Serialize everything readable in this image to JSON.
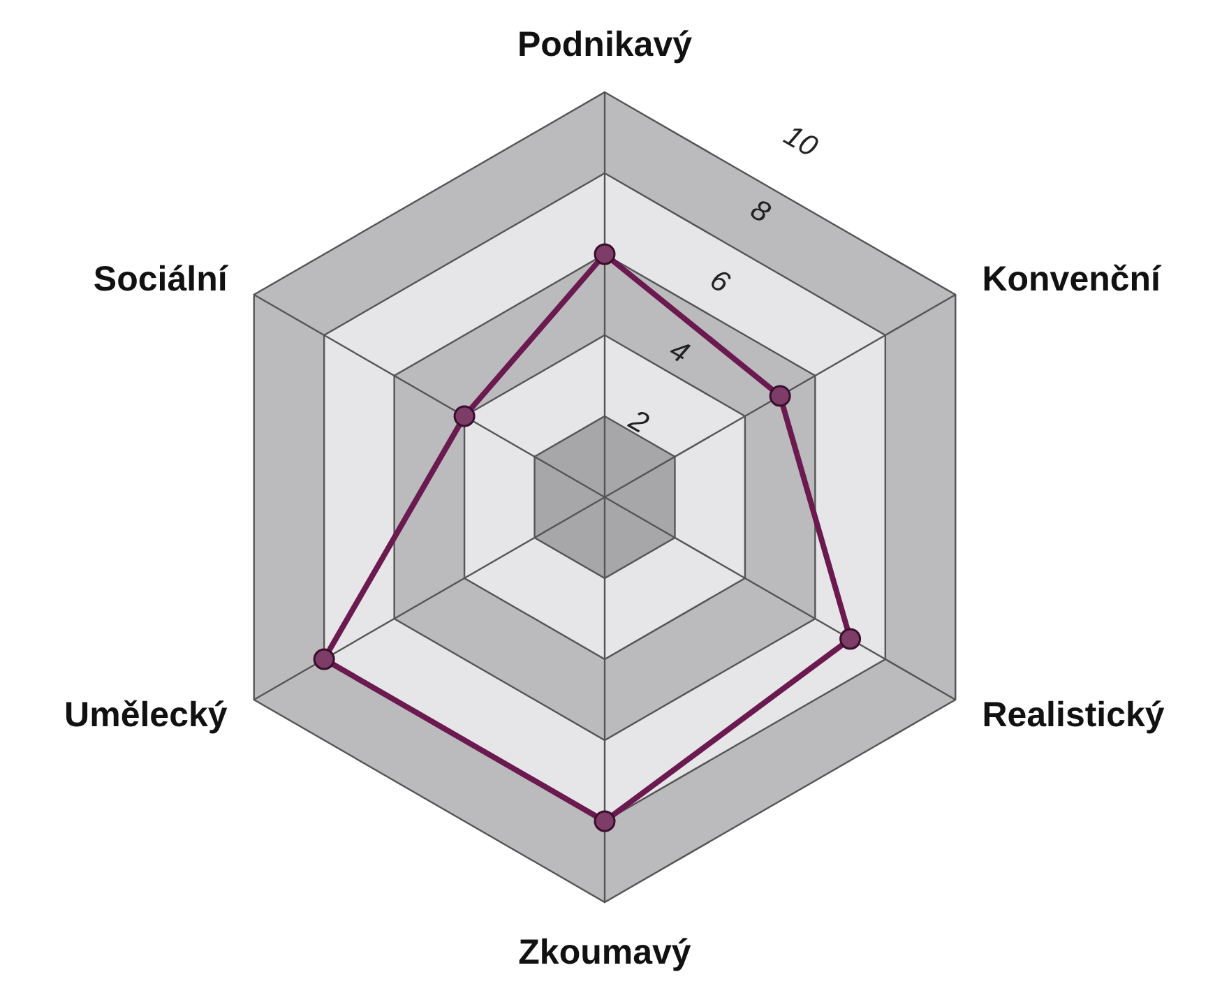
{
  "chart_data": {
    "type": "radar",
    "categories": [
      "Podnikavý",
      "Konvenční",
      "Realistický",
      "Zkoumavý",
      "Umělecký",
      "Sociální"
    ],
    "series": [
      {
        "color": "#6b1a4f",
        "values": [
          6,
          5,
          7,
          8,
          8,
          4
        ]
      }
    ],
    "ylim": [
      0,
      10
    ],
    "yticks": [
      2,
      4,
      6,
      8,
      10
    ],
    "grid": true,
    "marker": "circle"
  }
}
